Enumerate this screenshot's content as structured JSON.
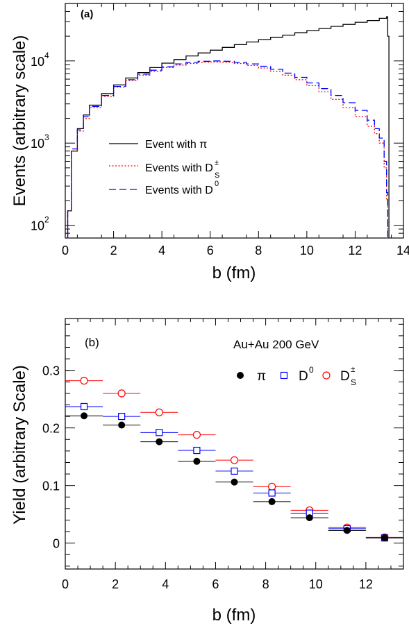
{
  "chart_data": [
    {
      "type": "line",
      "panel_label": "(a)",
      "xlabel": "b (fm)",
      "ylabel": "Events (arbitrary scale)",
      "xlim": [
        0,
        14
      ],
      "ylim": [
        70,
        50000
      ],
      "yscale": "log",
      "x_ticks": [
        "0",
        "2",
        "4",
        "6",
        "8",
        "10",
        "12",
        "14"
      ],
      "y_tick_values": [
        100,
        1000,
        10000
      ],
      "y_ticks_base": "10",
      "y_ticks_exp": [
        "2",
        "3",
        "4"
      ],
      "grid": false,
      "legend_placement": "center-left",
      "series": [
        {
          "name_text": "Event with ",
          "name_symbol": "π",
          "color": "#000000",
          "dash": "solid",
          "x": [
            0.1,
            0.25,
            0.5,
            0.75,
            1,
            1.5,
            2,
            2.5,
            3,
            3.5,
            4,
            4.5,
            5,
            5.5,
            6,
            6.5,
            7,
            7.5,
            8,
            8.5,
            9,
            9.5,
            10,
            10.5,
            11,
            11.5,
            12,
            12.5,
            13,
            13.3,
            13.35,
            13.4
          ],
          "y": [
            150,
            800,
            1500,
            2200,
            2900,
            4000,
            5100,
            6200,
            7200,
            8300,
            9400,
            10400,
            11500,
            12500,
            13500,
            14600,
            15800,
            17000,
            18200,
            19400,
            20600,
            22000,
            23400,
            24800,
            26300,
            27800,
            29500,
            31000,
            33000,
            34500,
            20000,
            70
          ]
        },
        {
          "name_text": "Events with D",
          "name_sup": "±",
          "name_sub": "S",
          "color": "#ff0000",
          "dash": "dotted",
          "x": [
            0.1,
            0.25,
            0.5,
            0.75,
            1,
            1.5,
            2,
            2.5,
            3,
            3.5,
            4,
            4.5,
            5,
            5.5,
            6,
            6.5,
            7,
            7.5,
            8,
            8.5,
            9,
            9.5,
            10,
            10.5,
            11,
            11.5,
            12,
            12.5,
            12.8,
            13,
            13.2,
            13.3,
            13.35
          ],
          "y": [
            150,
            800,
            1400,
            2000,
            2700,
            3700,
            4800,
            5800,
            6700,
            7500,
            8300,
            8900,
            9300,
            9600,
            9700,
            9600,
            9300,
            8800,
            8200,
            7500,
            6700,
            5900,
            5000,
            4200,
            3400,
            2700,
            2100,
            1600,
            1300,
            1000,
            500,
            200,
            70
          ]
        },
        {
          "name_text": "Events with D",
          "name_sup": "0",
          "color": "#0000ff",
          "dash": "dashed",
          "x": [
            0.1,
            0.25,
            0.5,
            0.75,
            1,
            1.5,
            2,
            2.5,
            3,
            3.5,
            4,
            4.5,
            5,
            5.5,
            6,
            6.5,
            7,
            7.5,
            8,
            8.5,
            9,
            9.5,
            10,
            10.5,
            11,
            11.5,
            12,
            12.5,
            12.8,
            13,
            13.2,
            13.3,
            13.35
          ],
          "y": [
            150,
            850,
            1450,
            2100,
            2800,
            3800,
            4900,
            5900,
            6900,
            7700,
            8500,
            9200,
            9600,
            9900,
            10000,
            9900,
            9600,
            9200,
            8600,
            7900,
            7100,
            6300,
            5400,
            4600,
            3800,
            3100,
            2500,
            1900,
            1500,
            1150,
            600,
            250,
            70
          ]
        }
      ]
    },
    {
      "type": "scatter",
      "panel_label": "(b)",
      "annotation": "Au+Au 200 GeV",
      "xlabel": "b (fm)",
      "ylabel": "Yield (arbitrary Scale)",
      "xlim": [
        0,
        13.5
      ],
      "ylim": [
        -0.045,
        0.39
      ],
      "x_ticks": [
        0,
        2,
        4,
        6,
        8,
        10,
        12
      ],
      "y_ticks": [
        "0",
        "0.1",
        "0.2",
        "0.3"
      ],
      "y_tick_values": [
        0,
        0.1,
        0.2,
        0.3
      ],
      "grid": false,
      "legend_placement": "top-right",
      "bin_edges": [
        0,
        1.5,
        3,
        4.5,
        6,
        7.5,
        9,
        10.5,
        12,
        13.5
      ],
      "series": [
        {
          "name_text": "π",
          "color": "#000000",
          "marker": "filled-circle",
          "x": [
            0.75,
            2.25,
            3.75,
            5.25,
            6.75,
            8.25,
            9.75,
            11.25,
            12.75
          ],
          "y": [
            0.221,
            0.205,
            0.176,
            0.142,
            0.106,
            0.072,
            0.044,
            0.022,
            0.009
          ]
        },
        {
          "name_text": "D",
          "name_sup": "0",
          "color": "#0000ff",
          "marker": "open-square",
          "x": [
            0.75,
            2.25,
            3.75,
            5.25,
            6.75,
            8.25,
            9.75,
            11.25,
            12.75
          ],
          "y": [
            0.237,
            0.22,
            0.192,
            0.161,
            0.125,
            0.087,
            0.052,
            0.025,
            0.009
          ]
        },
        {
          "name_text": "D",
          "name_sup": "±",
          "name_sub": "S",
          "color": "#ff0000",
          "marker": "open-circle",
          "x": [
            0.75,
            2.25,
            3.75,
            5.25,
            6.75,
            8.25,
            9.75,
            11.25,
            12.75
          ],
          "y": [
            0.282,
            0.26,
            0.227,
            0.188,
            0.144,
            0.098,
            0.057,
            0.027,
            0.01
          ]
        }
      ]
    }
  ]
}
